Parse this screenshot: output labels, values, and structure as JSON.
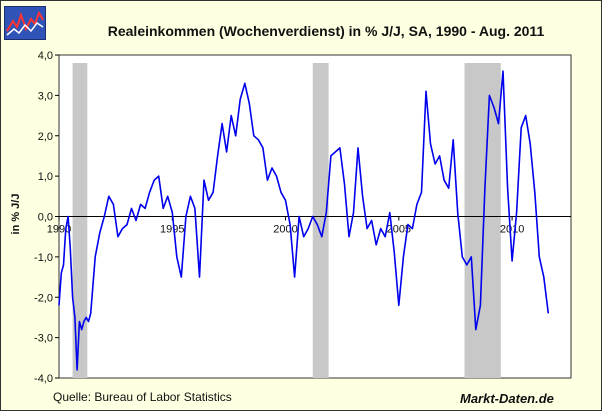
{
  "chart_data": {
    "type": "line",
    "title": "Realeinkommen (Wochenverdienst) in % J/J, SA, 1990 - Aug. 2011",
    "xlabel": "",
    "ylabel": "in % J/J",
    "xlim": [
      1990,
      2012.6
    ],
    "ylim": [
      -4,
      4
    ],
    "xticks": [
      1990,
      1995,
      2000,
      2005,
      2010
    ],
    "xtick_labels": [
      "1990",
      "1995",
      "2000",
      "2005",
      "2010"
    ],
    "yticks": [
      -4,
      -3,
      -2,
      -1,
      0,
      1,
      2,
      3,
      4
    ],
    "ytick_labels": [
      "-4,0",
      "-3,0",
      "-2,0",
      "-1,0",
      "0,0",
      "1,0",
      "2,0",
      "3,0",
      "4,0"
    ],
    "series_color": "#0000ee",
    "recession_color": "#c8c8c8",
    "recessions": [
      [
        1990.6,
        1991.25
      ],
      [
        2001.2,
        2001.9
      ],
      [
        2007.9,
        2009.5
      ]
    ],
    "series": [
      {
        "name": "Realeinkommen (Wochenverdienst) in % J/J",
        "x": [
          1990.0,
          1990.1,
          1990.2,
          1990.3,
          1990.4,
          1990.5,
          1990.6,
          1990.7,
          1990.8,
          1990.9,
          1991.0,
          1991.1,
          1991.2,
          1991.3,
          1991.4,
          1991.6,
          1991.8,
          1992.0,
          1992.2,
          1992.4,
          1992.6,
          1992.8,
          1993.0,
          1993.2,
          1993.4,
          1993.6,
          1993.8,
          1994.0,
          1994.2,
          1994.4,
          1994.6,
          1994.8,
          1995.0,
          1995.2,
          1995.4,
          1995.6,
          1995.8,
          1996.0,
          1996.2,
          1996.4,
          1996.6,
          1996.8,
          1997.0,
          1997.2,
          1997.4,
          1997.6,
          1997.8,
          1998.0,
          1998.2,
          1998.4,
          1998.6,
          1998.8,
          1999.0,
          1999.2,
          1999.4,
          1999.6,
          1999.8,
          2000.0,
          2000.2,
          2000.4,
          2000.6,
          2000.8,
          2001.0,
          2001.2,
          2001.4,
          2001.6,
          2001.8,
          2002.0,
          2002.2,
          2002.4,
          2002.6,
          2002.8,
          2003.0,
          2003.2,
          2003.4,
          2003.6,
          2003.8,
          2004.0,
          2004.2,
          2004.4,
          2004.6,
          2004.8,
          2005.0,
          2005.2,
          2005.4,
          2005.6,
          2005.8,
          2006.0,
          2006.2,
          2006.4,
          2006.6,
          2006.8,
          2007.0,
          2007.2,
          2007.4,
          2007.6,
          2007.8,
          2008.0,
          2008.2,
          2008.4,
          2008.6,
          2008.8,
          2009.0,
          2009.2,
          2009.4,
          2009.6,
          2009.8,
          2010.0,
          2010.2,
          2010.4,
          2010.6,
          2010.8,
          2011.0,
          2011.2,
          2011.4,
          2011.6
        ],
        "values": [
          -2.2,
          -1.4,
          -1.2,
          -0.3,
          0.0,
          -0.8,
          -2.0,
          -2.5,
          -3.8,
          -2.6,
          -2.8,
          -2.6,
          -2.5,
          -2.6,
          -2.4,
          -1.0,
          -0.4,
          0.0,
          0.5,
          0.3,
          -0.5,
          -0.3,
          -0.2,
          0.2,
          -0.1,
          0.3,
          0.2,
          0.6,
          0.9,
          1.0,
          0.2,
          0.5,
          0.1,
          -1.0,
          -1.5,
          0.0,
          0.5,
          0.2,
          -1.5,
          0.9,
          0.4,
          0.6,
          1.5,
          2.3,
          1.6,
          2.5,
          2.0,
          2.9,
          3.3,
          2.8,
          2.0,
          1.9,
          1.7,
          0.9,
          1.2,
          1.0,
          0.6,
          0.4,
          -0.2,
          -1.5,
          0.0,
          -0.5,
          -0.3,
          0.0,
          -0.2,
          -0.5,
          0.1,
          1.5,
          1.6,
          1.7,
          0.8,
          -0.5,
          0.1,
          1.7,
          0.5,
          -0.3,
          -0.1,
          -0.7,
          -0.3,
          -0.5,
          0.1,
          -0.9,
          -2.2,
          -1.0,
          -0.2,
          -0.3,
          0.3,
          0.6,
          3.1,
          1.8,
          1.3,
          1.5,
          0.9,
          0.7,
          1.9,
          0.1,
          -1.0,
          -1.2,
          -1.0,
          -2.8,
          -2.2,
          0.7,
          3.0,
          2.7,
          2.3,
          3.6,
          0.7,
          -1.1,
          0.1,
          2.2,
          2.5,
          1.8,
          0.6,
          -1.0,
          -1.5,
          -2.4
        ]
      }
    ]
  },
  "header": {
    "logo_label": "Markt-Daten logo"
  },
  "footer": {
    "source": "Quelle: Bureau of Labor Statistics",
    "brand": "Markt-Daten.de"
  }
}
